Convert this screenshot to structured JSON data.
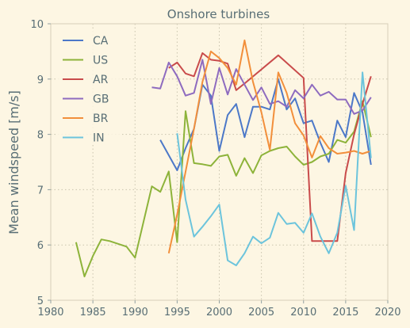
{
  "chart_data": {
    "type": "line",
    "title": "Onshore turbines",
    "xlabel": "",
    "ylabel": "Mean windspeed [m/s]",
    "xlim": [
      1980,
      2020
    ],
    "ylim": [
      5,
      10
    ],
    "xticks": [
      1980,
      1985,
      1990,
      1995,
      2000,
      2005,
      2010,
      2015,
      2020
    ],
    "yticks": [
      5,
      6,
      7,
      8,
      9,
      10
    ],
    "grid": true,
    "legend_position": "top-left",
    "series": [
      {
        "name": "CA",
        "color": "#4c78c8",
        "x": [
          1993,
          1995,
          1996,
          1997,
          1998,
          1999,
          2000,
          2001,
          2002,
          2003,
          2004,
          2005,
          2006,
          2007,
          2008,
          2009,
          2010,
          2011,
          2012,
          2013,
          2014,
          2015,
          2016,
          2017,
          2018
        ],
        "y": [
          7.9,
          7.35,
          7.75,
          8.1,
          8.9,
          8.7,
          7.7,
          8.35,
          8.55,
          7.95,
          8.5,
          8.5,
          8.45,
          9.0,
          8.45,
          8.65,
          8.2,
          8.25,
          7.85,
          7.5,
          8.25,
          7.95,
          8.75,
          8.4,
          7.45
        ]
      },
      {
        "name": "US",
        "color": "#8db33a",
        "x": [
          1983,
          1984,
          1985,
          1986,
          1987,
          1988,
          1989,
          1990,
          1992,
          1993,
          1994,
          1995,
          1996,
          1997,
          1998,
          1999,
          2000,
          2001,
          2002,
          2003,
          2004,
          2005,
          2006,
          2007,
          2008,
          2009,
          2010,
          2011,
          2012,
          2013,
          2014,
          2015,
          2016,
          2017,
          2018
        ],
        "y": [
          6.05,
          5.43,
          5.8,
          6.1,
          6.07,
          6.02,
          5.97,
          5.77,
          7.06,
          6.96,
          7.33,
          6.05,
          8.42,
          7.48,
          7.46,
          7.43,
          7.6,
          7.63,
          7.25,
          7.57,
          7.3,
          7.62,
          7.7,
          7.75,
          7.78,
          7.6,
          7.45,
          7.5,
          7.6,
          7.65,
          7.9,
          7.85,
          8.05,
          8.6,
          7.95
        ]
      },
      {
        "name": "AR",
        "color": "#c94b4b",
        "x": [
          1994,
          1995,
          1996,
          1997,
          1998,
          1999,
          2000,
          2001,
          2002,
          2003,
          2007,
          2010,
          2011,
          2012,
          2013,
          2014,
          2015,
          2016,
          2017,
          2018
        ],
        "y": [
          9.2,
          9.3,
          9.1,
          9.05,
          9.47,
          9.35,
          9.33,
          9.28,
          8.8,
          8.92,
          9.43,
          9.02,
          6.07,
          6.07,
          6.07,
          6.07,
          7.3,
          8.0,
          8.55,
          9.05
        ]
      },
      {
        "name": "GB",
        "color": "#8e6bbf",
        "x": [
          1992,
          1993,
          1994,
          1995,
          1996,
          1997,
          1998,
          1999,
          2000,
          2001,
          2002,
          2003,
          2004,
          2005,
          2006,
          2007,
          2008,
          2009,
          2010,
          2011,
          2012,
          2013,
          2014,
          2015,
          2016,
          2017,
          2018
        ],
        "y": [
          8.85,
          8.83,
          9.3,
          9.05,
          8.7,
          8.75,
          9.35,
          8.55,
          9.2,
          8.72,
          9.18,
          8.9,
          8.62,
          8.85,
          8.55,
          8.6,
          8.5,
          8.8,
          8.65,
          8.9,
          8.7,
          8.77,
          8.63,
          8.63,
          8.37,
          8.43,
          8.67
        ]
      },
      {
        "name": "BR",
        "color": "#f28f3b",
        "x": [
          1994,
          1995,
          1997,
          1998,
          1999,
          2000,
          2001,
          2002,
          2003,
          2004,
          2005,
          2006,
          2007,
          2008,
          2009,
          2010,
          2011,
          2012,
          2013,
          2014,
          2015,
          2016,
          2017,
          2018
        ],
        "y": [
          5.85,
          6.55,
          8.1,
          8.95,
          9.5,
          9.38,
          9.2,
          8.9,
          9.7,
          8.95,
          8.4,
          7.72,
          9.12,
          8.75,
          8.2,
          7.98,
          7.58,
          7.97,
          7.75,
          7.65,
          7.67,
          7.7,
          7.65,
          7.7
        ]
      },
      {
        "name": "IN",
        "color": "#6cc4dc",
        "x": [
          1995,
          1996,
          1997,
          1998,
          1999,
          2000,
          2001,
          2002,
          2003,
          2004,
          2005,
          2006,
          2007,
          2008,
          2009,
          2010,
          2011,
          2012,
          2013,
          2014,
          2015,
          2016,
          2017,
          2018
        ],
        "y": [
          8.02,
          6.82,
          6.15,
          6.33,
          6.52,
          6.73,
          5.72,
          5.63,
          5.85,
          6.15,
          6.03,
          6.13,
          6.58,
          6.38,
          6.4,
          6.22,
          6.57,
          6.15,
          5.85,
          6.22,
          7.07,
          6.27,
          9.12,
          7.57
        ]
      }
    ]
  }
}
